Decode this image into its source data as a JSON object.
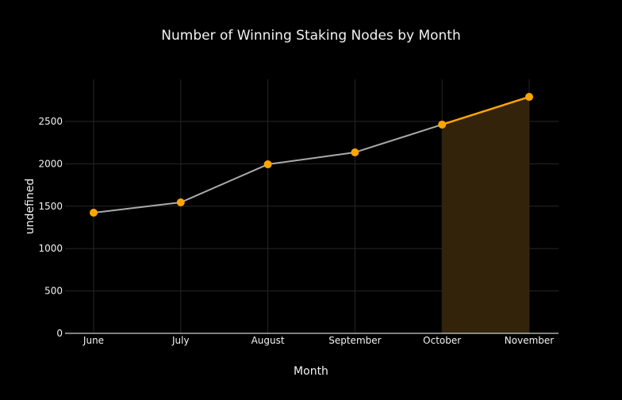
{
  "chart_data": {
    "type": "line",
    "title": "Number of Winning Staking Nodes by Month",
    "xlabel": "Month",
    "ylabel": "undefined",
    "categories": [
      "June",
      "July",
      "August",
      "September",
      "October",
      "November"
    ],
    "values": [
      1423,
      1545,
      1994,
      2135,
      2463,
      2790
    ],
    "ylim": [
      0,
      3000
    ],
    "yticks": [
      0,
      500,
      1000,
      1500,
      2000,
      2500
    ],
    "grid": true,
    "highlight": {
      "from": "October",
      "to": "November"
    },
    "colors": {
      "line": "#aaaaaa",
      "marker": "#ffa500",
      "highlight_line": "#ffa500",
      "highlight_fill": "#33230a",
      "grid": "#262626",
      "background": "#000000"
    }
  }
}
